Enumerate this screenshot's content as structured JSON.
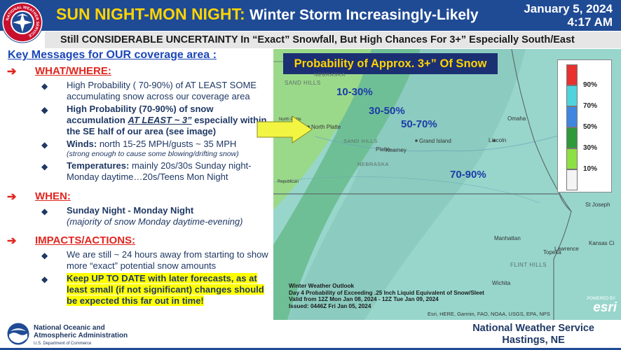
{
  "header": {
    "title_highlight": "SUN NIGHT-MON NIGHT:",
    "title_rest": "Winter Storm Increasingly-Likely",
    "date": "January 5, 2024",
    "time": "4:17 AM",
    "subtitle": "Still CONSIDERABLE UNCERTAINTY In “Exact” Snowfall, But High Chances For 3+” Especially South/East",
    "logo_text": "NATIONAL WEATHER SERVICE",
    "logo_icon": "nws-logo"
  },
  "key_messages": {
    "title": "Key Messages for OUR coverage area",
    "title_colon": ":",
    "arrow_glyph": "➔",
    "bullet_glyph": "◆",
    "sections": [
      {
        "label": "WHAT/WHERE:",
        "bullets": [
          {
            "text": "High Probability ( 70-90%) of AT LEAST SOME accumulating snow across our coverage area"
          },
          {
            "part1": "High Probability (70-90%) of snow accumulation ",
            "emph": "AT LEAST ~ 3”",
            "part2": " especially within the SE half of our area (see image)"
          },
          {
            "lead": "Winds:",
            "text": " north 15-25 MPH/gusts ~ 35 MPH",
            "note": "(strong enough to cause some blowing/drifting snow)"
          },
          {
            "lead": "Temperatures:",
            "text": " mainly 20s/30s Sunday night-Monday daytime…20s/Teens Mon Night"
          }
        ]
      },
      {
        "label": "WHEN:",
        "bullets": [
          {
            "lead": "Sunday Night - Monday Night",
            "note": "(majority of snow Monday daytime-evening)"
          }
        ]
      },
      {
        "label": "IMPACTS/ACTIONS:",
        "bullets": [
          {
            "text": "We are still ~ 24 hours away from starting to show more “exact” potential snow amounts"
          },
          {
            "text": "Keep UP TO DATE with later forecasts, as at least small (if not significant) changes should be expected this far out in time!"
          }
        ]
      }
    ]
  },
  "map": {
    "title": "Probability of Approx. 3+” Of Snow",
    "zone_labels": [
      "10-30%",
      "30-50%",
      "50-70%",
      "70-90%"
    ],
    "places": {
      "nebraska_top": "NEBRASKA",
      "sandhills_top": "SAND HILLS",
      "north_platte": "North Platte",
      "north_platte_small": "North Platte",
      "sandhills_mid": "SAND HILLS",
      "grand_island": "Grand Island",
      "kearney": "Kearney",
      "platte": "Platte",
      "nebraska_mid": "NEBRASKA",
      "republican": "Republican",
      "omaha": "Omaha",
      "lincoln": "Lincoln",
      "st_joseph": "St Joseph",
      "manhattan": "Manhattan",
      "lawrence": "Lawrence",
      "kansas_city": "Kansas Ci",
      "topeka": "Topeka",
      "flint_hills": "FLINT HILLS",
      "wichita": "Wichita"
    },
    "legend": [
      {
        "label": "90%",
        "color": "#e8312f"
      },
      {
        "label": "70%",
        "color": "#4fd3dc"
      },
      {
        "label": "50%",
        "color": "#3f86e0"
      },
      {
        "label": "30%",
        "color": "#2e9a3a"
      },
      {
        "label": "10%",
        "color": "#8de043"
      },
      {
        "label": "",
        "color": "#f4f4f4"
      }
    ],
    "outlook_lines": [
      "Winter Weather Outlook",
      "Day 4 Probability of Exceeding .25 Inch Liquid Equivalent of Snow/Sleet",
      "Valid from 12Z Mon Jan 08, 2024 - 12Z Tue Jan 09, 2024",
      "Issued: 0446Z Fri Jan 05, 2024"
    ],
    "attribution": "Esri, HERE, Garmin, FAO, NOAA, USGS, EPA, NPS",
    "esri_sub": "POWERED BY",
    "esri": "esri",
    "colors": {
      "zone_10_30": "#9bd98a",
      "zone_30_50": "#6fbf96",
      "zone_50_70": "#8ccbbf",
      "zone_70_90": "#98d6cc"
    }
  },
  "footer": {
    "noaa_line1": "National Oceanic and",
    "noaa_line2": "Atmospheric Administration",
    "noaa_dept": "U.S. Department of Commerce",
    "noaa_icon": "noaa-logo",
    "office_line1": "National Weather Service",
    "office_line2": "Hastings, NE"
  }
}
